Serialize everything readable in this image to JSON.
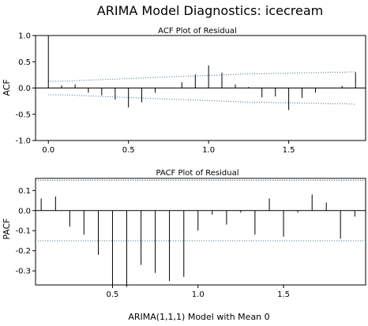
{
  "title": "ARIMA Model Diagnostics:  icecream",
  "footer": "ARIMA(1,1,1) Model with Mean  0",
  "band_color": "#3a6fc4",
  "chart_data": [
    {
      "type": "bar",
      "panel": "acf",
      "title": "ACF Plot of Residual",
      "xlabel": "",
      "ylabel": "ACF",
      "xlim": [
        -0.08,
        1.98
      ],
      "ylim": [
        -1.0,
        1.0
      ],
      "xticks": [
        0.0,
        0.5,
        1.0,
        1.5
      ],
      "xtick_labels": [
        "0.0",
        "0.5",
        "1.0",
        "1.5"
      ],
      "yticks": [
        -1.0,
        -0.5,
        0.0,
        0.5,
        1.0
      ],
      "ytick_labels": [
        "-1.0",
        "-0.5",
        "0.0",
        "0.5",
        "1.0"
      ],
      "x": [
        0.0,
        0.083,
        0.167,
        0.25,
        0.333,
        0.417,
        0.5,
        0.583,
        0.667,
        0.75,
        0.833,
        0.917,
        1.0,
        1.083,
        1.167,
        1.25,
        1.333,
        1.417,
        1.5,
        1.583,
        1.667,
        1.75,
        1.833,
        1.917
      ],
      "values": [
        1.0,
        0.05,
        0.07,
        -0.09,
        -0.14,
        -0.22,
        -0.37,
        -0.27,
        -0.09,
        0.0,
        0.11,
        0.26,
        0.43,
        0.29,
        0.07,
        0.02,
        -0.18,
        -0.16,
        -0.42,
        -0.19,
        -0.09,
        0.0,
        0.04,
        0.3
      ],
      "upper_band": [
        0.13,
        0.13,
        0.14,
        0.15,
        0.16,
        0.17,
        0.18,
        0.19,
        0.2,
        0.21,
        0.22,
        0.23,
        0.24,
        0.25,
        0.26,
        0.27,
        0.27,
        0.28,
        0.28,
        0.29,
        0.29,
        0.3,
        0.3,
        0.31
      ],
      "lower_band": [
        -0.13,
        -0.13,
        -0.14,
        -0.15,
        -0.16,
        -0.17,
        -0.18,
        -0.19,
        -0.2,
        -0.21,
        -0.22,
        -0.23,
        -0.24,
        -0.25,
        -0.26,
        -0.27,
        -0.27,
        -0.28,
        -0.28,
        -0.29,
        -0.29,
        -0.3,
        -0.3,
        -0.31
      ],
      "band_x": [
        0.0,
        0.083,
        0.167,
        0.25,
        0.333,
        0.417,
        0.5,
        0.583,
        0.667,
        0.75,
        0.833,
        0.917,
        1.0,
        1.083,
        1.167,
        1.25,
        1.333,
        1.417,
        1.5,
        1.583,
        1.667,
        1.75,
        1.833,
        1.917
      ]
    },
    {
      "type": "bar",
      "panel": "pacf",
      "title": "PACF Plot of Residual",
      "xlabel": "ARIMA(1,1,1) Model with Mean  0",
      "ylabel": "PACF",
      "xlim": [
        0.05,
        1.98
      ],
      "ylim": [
        -0.37,
        0.16
      ],
      "xticks": [
        0.5,
        1.0,
        1.5
      ],
      "xtick_labels": [
        "0.5",
        "1.0",
        "1.5"
      ],
      "yticks": [
        -0.3,
        -0.2,
        -0.1,
        0.0,
        0.1
      ],
      "ytick_labels": [
        "-0.3",
        "-0.2",
        "-0.1",
        "0.0",
        "0.1"
      ],
      "x": [
        0.083,
        0.167,
        0.25,
        0.333,
        0.417,
        0.5,
        0.583,
        0.667,
        0.75,
        0.833,
        0.917,
        1.0,
        1.083,
        1.167,
        1.25,
        1.333,
        1.417,
        1.5,
        1.583,
        1.667,
        1.75,
        1.833,
        1.917
      ],
      "values": [
        0.06,
        0.07,
        -0.08,
        -0.12,
        -0.22,
        -0.37,
        -0.38,
        -0.27,
        -0.31,
        -0.35,
        -0.33,
        -0.1,
        -0.02,
        -0.07,
        -0.01,
        -0.12,
        0.06,
        -0.13,
        -0.01,
        0.08,
        0.04,
        -0.14,
        -0.03
      ],
      "upper_band": 0.15,
      "lower_band": -0.15
    }
  ]
}
